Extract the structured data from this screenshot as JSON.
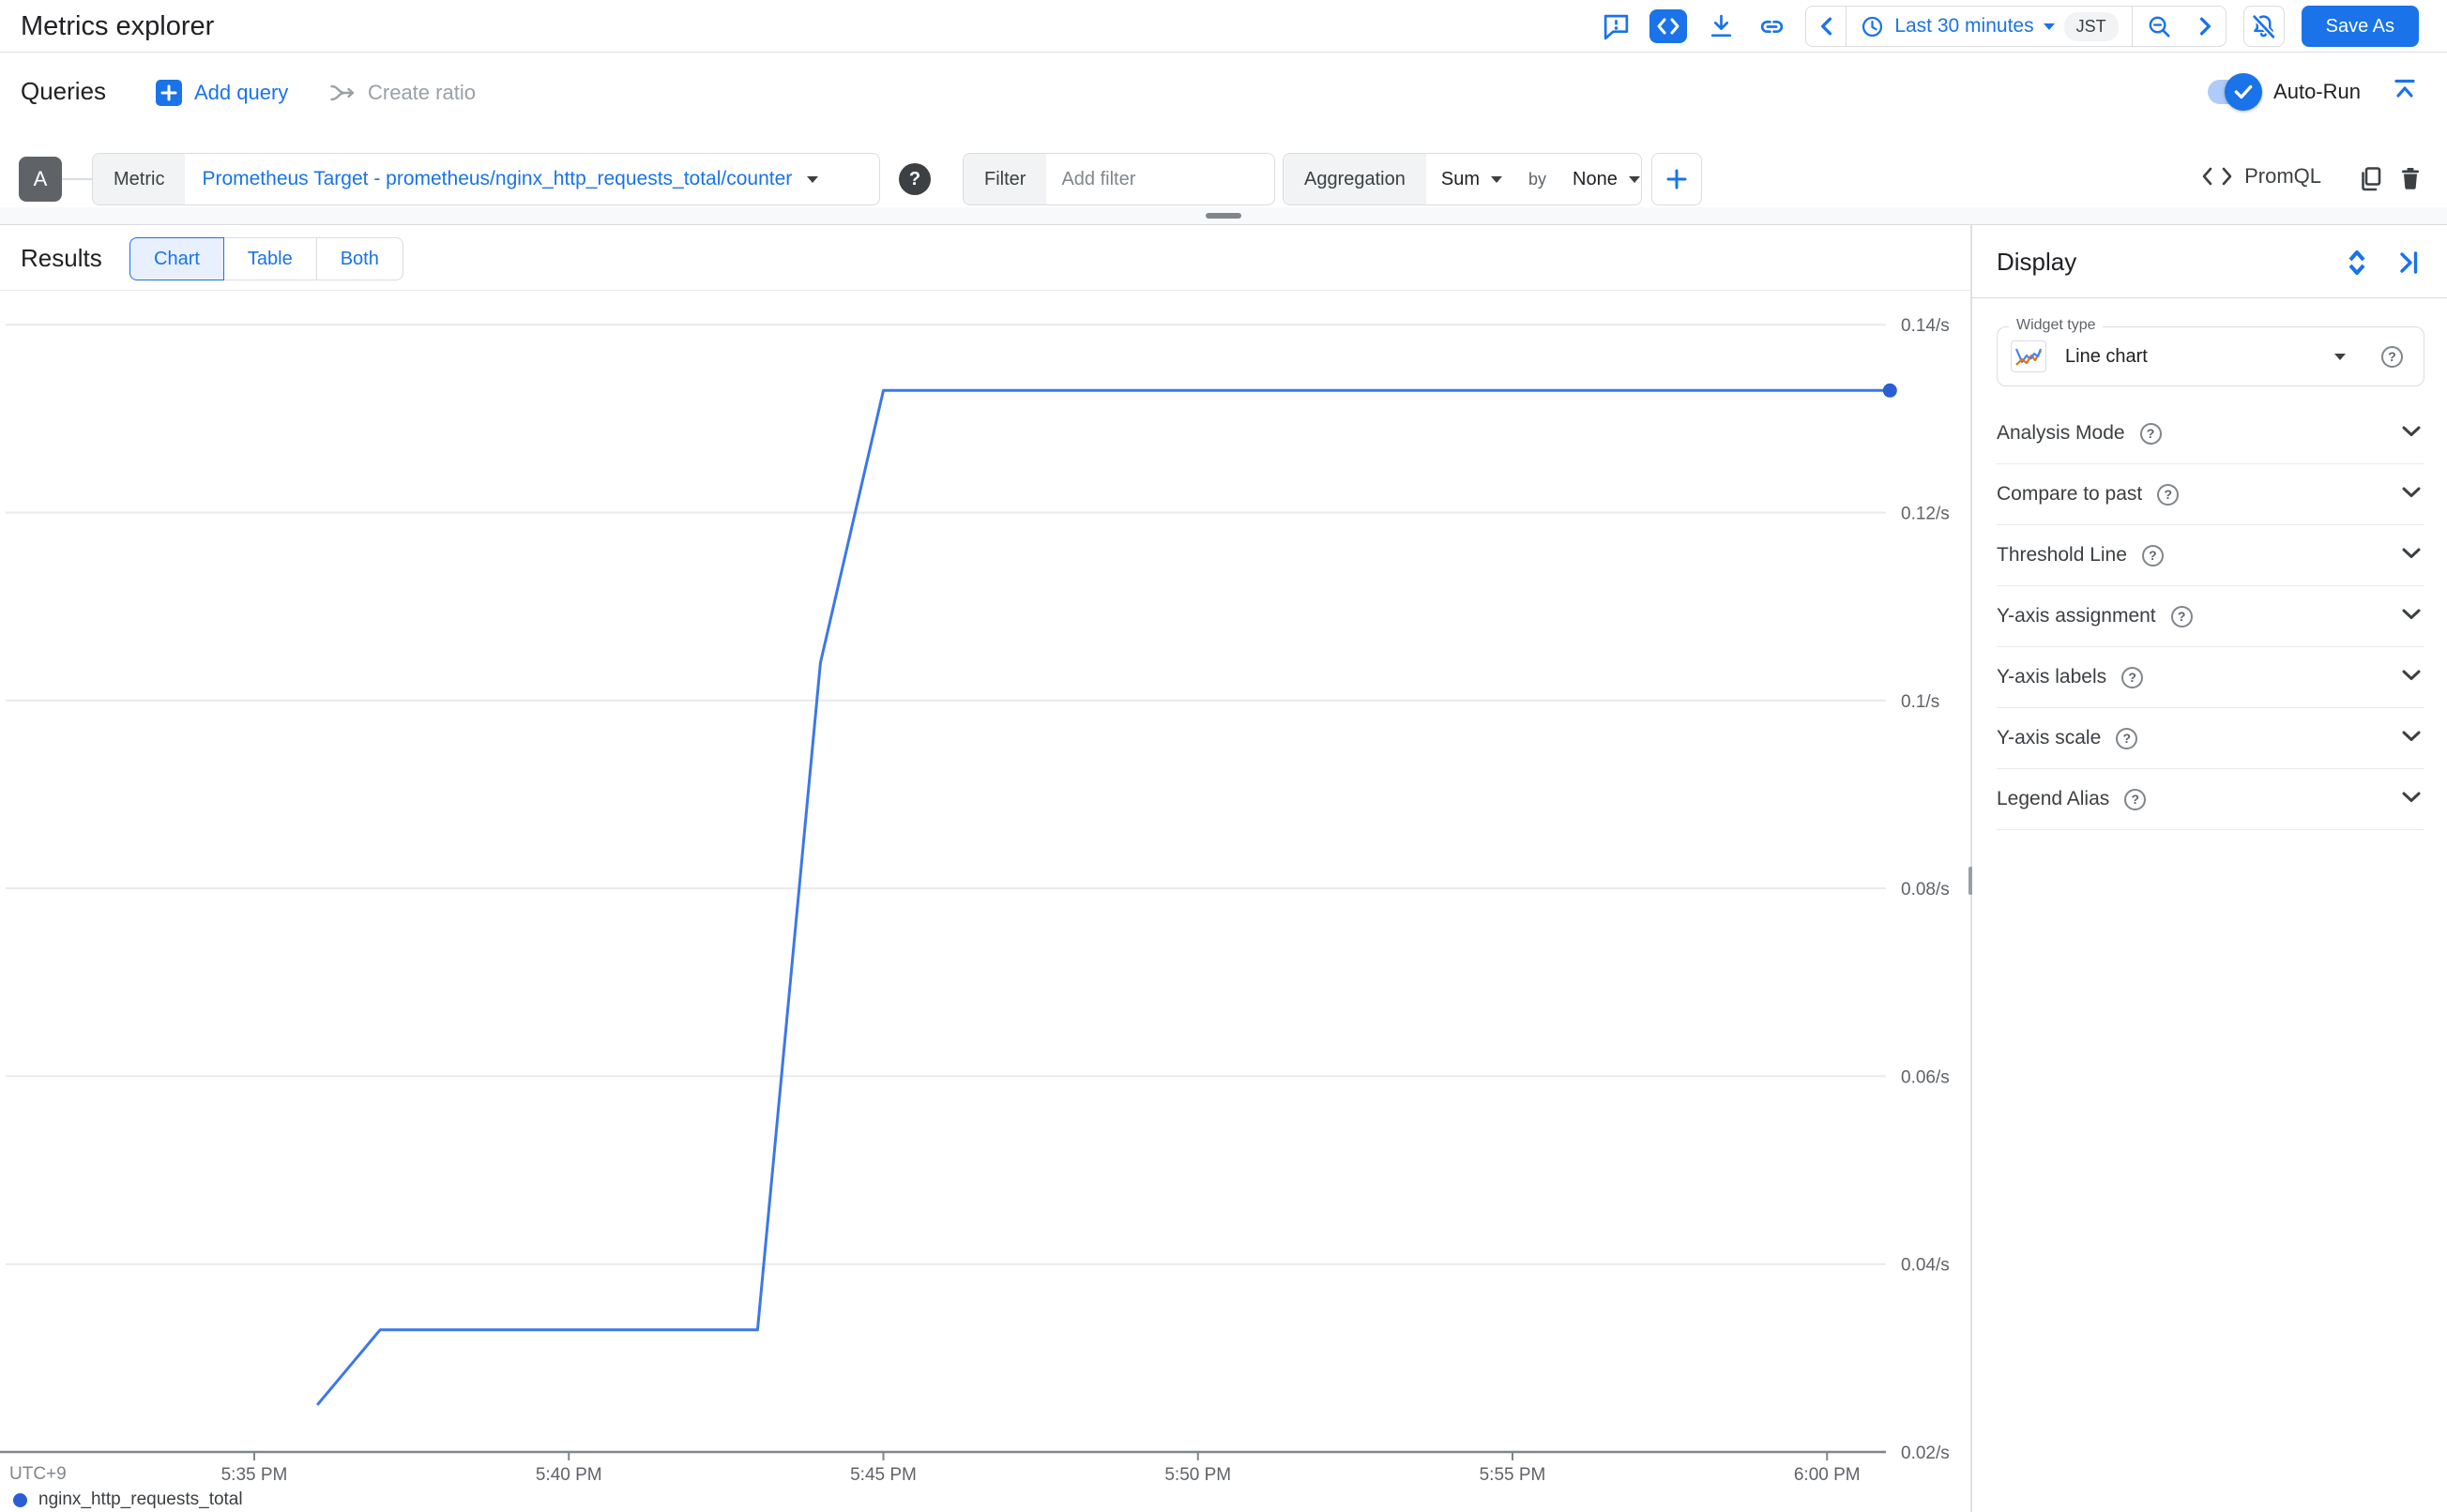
{
  "header": {
    "title": "Metrics explorer",
    "icons": [
      "feedback-icon",
      "code-icon",
      "download-icon",
      "link-icon",
      "chevron-left-icon",
      "clock-icon",
      "caret-down-icon",
      "zoom-out-icon",
      "chevron-right-icon",
      "notifications-off-icon"
    ],
    "time_range": "Last 30 minutes",
    "timezone_badge": "JST",
    "save_as": "Save As"
  },
  "queries": {
    "title": "Queries",
    "add_query": "Add query",
    "create_ratio": "Create ratio",
    "auto_run": "Auto-Run"
  },
  "query": {
    "id": "A",
    "metric": {
      "label": "Metric",
      "value": "Prometheus Target - prometheus/nginx_http_requests_total/counter"
    },
    "filter": {
      "label": "Filter",
      "placeholder": "Add filter"
    },
    "aggregation": {
      "label": "Aggregation",
      "value": "Sum",
      "by_label": "by",
      "by_value": "None"
    },
    "promql": "PromQL"
  },
  "results": {
    "title": "Results",
    "tabs": [
      "Chart",
      "Table",
      "Both"
    ],
    "active_tab": "Chart"
  },
  "display": {
    "title": "Display",
    "widget_type": {
      "label": "Widget type",
      "value": "Line chart"
    },
    "sections": [
      "Analysis Mode",
      "Compare to past",
      "Threshold Line",
      "Y-axis assignment",
      "Y-axis labels",
      "Y-axis scale",
      "Legend Alias"
    ]
  },
  "chart_data": {
    "type": "line",
    "title": "",
    "x_axis": {
      "timezone_label": "UTC+9",
      "ticks": [
        "5:35 PM",
        "5:40 PM",
        "5:45 PM",
        "5:50 PM",
        "5:55 PM",
        "6:00 PM"
      ]
    },
    "y_axis": {
      "unit": "/s",
      "ticks": [
        "0.14/s",
        "0.12/s",
        "0.1/s",
        "0.08/s",
        "0.06/s",
        "0.04/s",
        "0.02/s"
      ],
      "min": 0.02,
      "max": 0.14
    },
    "grid": "horizontal",
    "legend_position": "bottom",
    "series": [
      {
        "name": "nginx_http_requests_total",
        "color": "#3b78e7",
        "points": [
          {
            "time": "5:36 PM",
            "value": 0.025
          },
          {
            "time": "5:37 PM",
            "value": 0.033
          },
          {
            "time": "5:43 PM",
            "value": 0.033
          },
          {
            "time": "5:44 PM",
            "value": 0.104
          },
          {
            "time": "5:45 PM",
            "value": 0.133
          },
          {
            "time": "6:01 PM",
            "value": 0.133
          }
        ]
      }
    ]
  },
  "colors": {
    "accent": "#1a73e8",
    "line": "#3b78e7",
    "dot": "#2b5dd3",
    "grid": "#e8eaed",
    "axis": "#80868b",
    "tick_text": "#5f6368"
  }
}
